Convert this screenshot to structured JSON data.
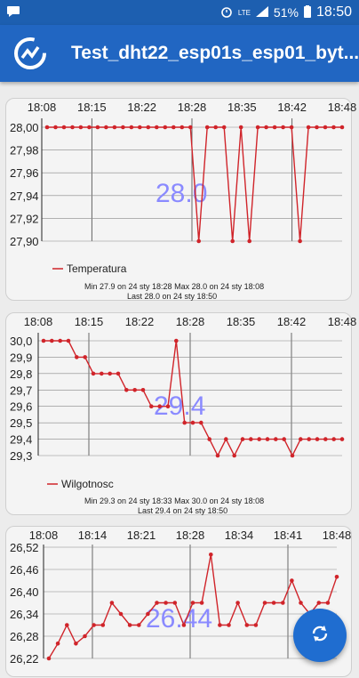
{
  "status": {
    "time": "18:50",
    "battery": "51%",
    "network": "LTE",
    "icons": [
      "message-icon",
      "alarm-icon",
      "signal-icon",
      "battery-icon"
    ]
  },
  "appbar": {
    "title": "Test_dht22_esp01s_esp01_byt..."
  },
  "charts": {
    "temp": {
      "xticks": [
        "18:08",
        "18:15",
        "18:22",
        "18:28",
        "18:35",
        "18:42",
        "18:48"
      ],
      "yticks": [
        "28,00",
        "27,98",
        "27,96",
        "27,94",
        "27,92",
        "27,90"
      ],
      "current": "28.0",
      "legend": "Temperatura",
      "minmax": "Min   27.9 on 24 sty 18:28    Max   28.0 on 24 sty 18:08",
      "last": "Last   28.0 on 24 sty 18:50"
    },
    "hum": {
      "xticks": [
        "18:08",
        "18:15",
        "18:22",
        "18:28",
        "18:35",
        "18:42",
        "18:48"
      ],
      "yticks": [
        "30,0",
        "29,9",
        "29,8",
        "29,7",
        "29,6",
        "29,5",
        "29,4",
        "29,3"
      ],
      "current": "29.4",
      "legend": "Wilgotnosc",
      "minmax": "Min   29.3 on 24 sty 18:33    Max   30.0 on 24 sty 18:08",
      "last": "Last   29.4 on 24 sty 18:50"
    },
    "third": {
      "xticks": [
        "18:08",
        "18:14",
        "18:21",
        "18:28",
        "18:34",
        "18:41",
        "18:48"
      ],
      "yticks": [
        "26,52",
        "26,46",
        "26,40",
        "26,34",
        "26,28",
        "26,22"
      ],
      "current": "26.44"
    }
  },
  "chart_data": [
    {
      "type": "line",
      "series": [
        {
          "name": "Temperatura",
          "values": [
            28.0,
            28.0,
            28.0,
            28.0,
            28.0,
            28.0,
            28.0,
            28.0,
            28.0,
            28.0,
            28.0,
            28.0,
            28.0,
            28.0,
            28.0,
            28.0,
            28.0,
            28.0,
            27.9,
            28.0,
            28.0,
            28.0,
            27.9,
            28.0,
            27.9,
            28.0,
            28.0,
            28.0,
            28.0,
            28.0,
            27.9,
            28.0,
            28.0,
            28.0,
            28.0,
            28.0
          ]
        }
      ],
      "ylim": [
        27.9,
        28.0
      ],
      "color": "#d0242a"
    },
    {
      "type": "line",
      "series": [
        {
          "name": "Wilgotnosc",
          "values": [
            30.0,
            30.0,
            30.0,
            30.0,
            29.9,
            29.9,
            29.8,
            29.8,
            29.8,
            29.8,
            29.7,
            29.7,
            29.7,
            29.6,
            29.6,
            29.6,
            30.0,
            29.5,
            29.5,
            29.5,
            29.4,
            29.3,
            29.4,
            29.3,
            29.4,
            29.4,
            29.4,
            29.4,
            29.4,
            29.4,
            29.3,
            29.4,
            29.4,
            29.4,
            29.4,
            29.4,
            29.4
          ]
        }
      ],
      "ylim": [
        29.3,
        30.0
      ],
      "color": "#d0242a"
    },
    {
      "type": "line",
      "series": [
        {
          "name": "",
          "values": [
            26.22,
            26.26,
            26.31,
            26.26,
            26.28,
            26.31,
            26.31,
            26.37,
            26.34,
            26.31,
            26.31,
            26.34,
            26.37,
            26.37,
            26.37,
            26.31,
            26.37,
            26.37,
            26.5,
            26.31,
            26.31,
            26.37,
            26.31,
            26.31,
            26.37,
            26.37,
            26.37,
            26.43,
            26.37,
            26.34,
            26.37,
            26.37,
            26.44
          ]
        }
      ],
      "ylim": [
        26.22,
        26.52
      ],
      "color": "#d0242a"
    }
  ]
}
